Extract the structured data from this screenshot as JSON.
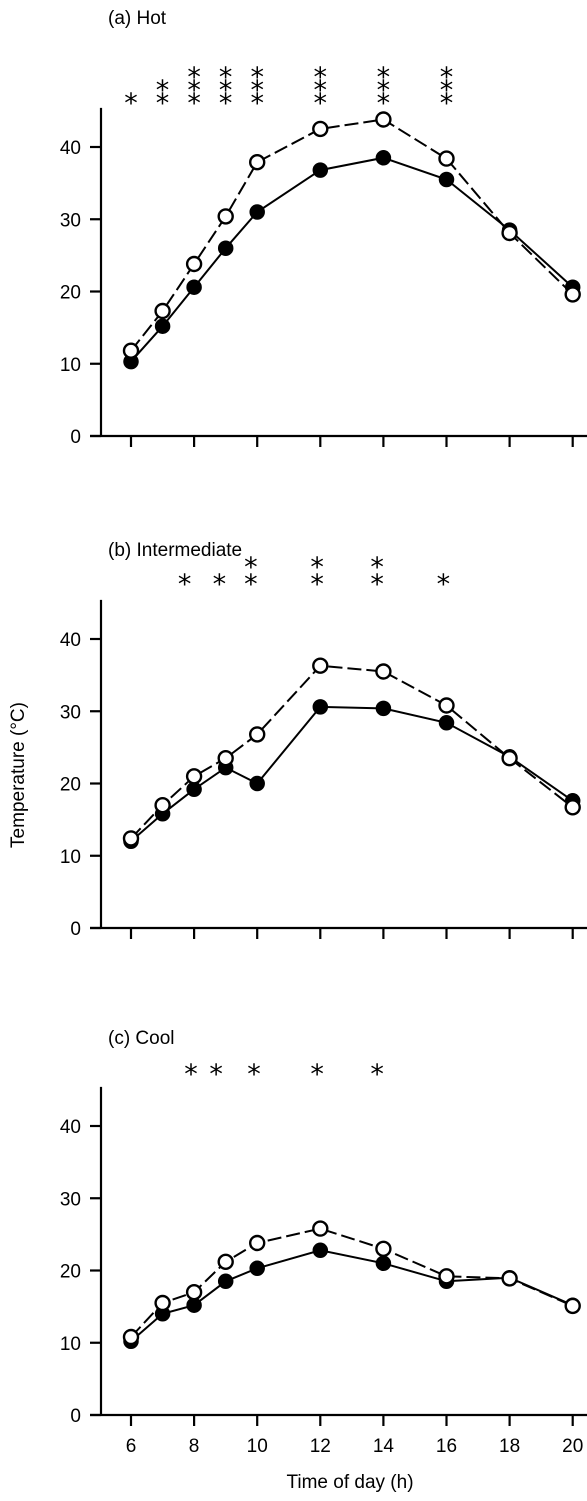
{
  "figure": {
    "y_axis_label": "Temperature (°C)",
    "x_axis_label": "Time of day (h)"
  },
  "chart_data": [
    {
      "type": "line",
      "title": "(a)  Hot",
      "xlabel": "",
      "ylabel": "",
      "ylim": [
        0,
        45
      ],
      "yticks": [
        "0",
        "10",
        "20",
        "30",
        "40"
      ],
      "xticks": [
        6,
        8,
        10,
        12,
        14,
        16,
        18,
        20
      ],
      "xtick_labels": [],
      "series": [
        {
          "style": "open circles, dashed line",
          "x": [
            6,
            7,
            8,
            9,
            10,
            12,
            14,
            16,
            18,
            20
          ],
          "values": [
            11.8,
            17.3,
            23.8,
            30.4,
            37.9,
            42.5,
            43.8,
            38.4,
            28.1,
            19.6
          ]
        },
        {
          "style": "filled circles, solid line",
          "x": [
            6,
            7,
            8,
            9,
            10,
            12,
            14,
            16,
            18,
            20
          ],
          "values": [
            10.3,
            15.2,
            20.6,
            26.0,
            31.0,
            36.8,
            38.5,
            35.5,
            28.5,
            20.6
          ]
        }
      ],
      "significance": [
        {
          "x": 6,
          "marks": [
            "*"
          ]
        },
        {
          "x": 7,
          "marks": [
            "**"
          ]
        },
        {
          "x": 8,
          "marks": [
            "***"
          ]
        },
        {
          "x": 9,
          "marks": [
            "***"
          ]
        },
        {
          "x": 10,
          "marks": [
            "***"
          ]
        },
        {
          "x": 12,
          "marks": [
            "***"
          ]
        },
        {
          "x": 14,
          "marks": [
            "***"
          ]
        },
        {
          "x": 16,
          "marks": [
            "***"
          ]
        }
      ]
    },
    {
      "type": "line",
      "title": "(b)  Intermediate",
      "xlabel": "",
      "ylabel": "Temperature (°C)",
      "ylim": [
        0,
        45
      ],
      "yticks": [
        "0",
        "10",
        "20",
        "30",
        "40"
      ],
      "xticks": [
        6,
        8,
        10,
        12,
        14,
        16,
        18,
        20
      ],
      "xtick_labels": [],
      "series": [
        {
          "style": "open circles, dashed line",
          "x": [
            6,
            7,
            8,
            9,
            10,
            12,
            14,
            16,
            18,
            20
          ],
          "values": [
            12.4,
            17.0,
            21.0,
            23.5,
            26.8,
            36.3,
            35.5,
            30.8,
            23.5,
            16.7
          ]
        },
        {
          "style": "filled circles, solid line",
          "x": [
            6,
            7,
            8,
            9,
            10,
            12,
            14,
            16,
            18,
            20
          ],
          "values": [
            12.0,
            15.8,
            19.2,
            22.2,
            20.0,
            30.6,
            30.4,
            28.4,
            23.7,
            17.6
          ]
        }
      ],
      "significance": [
        {
          "x": 7.7,
          "marks": [
            "*"
          ]
        },
        {
          "x": 8.8,
          "marks": [
            "*"
          ]
        },
        {
          "x": 9.8,
          "marks": [
            "*",
            "*"
          ]
        },
        {
          "x": 11.9,
          "marks": [
            "*",
            "*"
          ]
        },
        {
          "x": 13.8,
          "marks": [
            "*",
            "*"
          ]
        },
        {
          "x": 15.9,
          "marks": [
            "*"
          ]
        }
      ]
    },
    {
      "type": "line",
      "title": "(c)  Cool",
      "xlabel": "Time of day (h)",
      "ylabel": "",
      "ylim": [
        0,
        45
      ],
      "yticks": [
        "0",
        "10",
        "20",
        "30",
        "40"
      ],
      "xticks": [
        6,
        8,
        10,
        12,
        14,
        16,
        18,
        20
      ],
      "xtick_labels": [
        "6",
        "8",
        "10",
        "12",
        "14",
        "16",
        "18",
        "20"
      ],
      "series": [
        {
          "style": "open circles, dashed line",
          "x": [
            6,
            7,
            8,
            9,
            10,
            12,
            14,
            16,
            18,
            20
          ],
          "values": [
            10.8,
            15.5,
            17.0,
            21.2,
            23.8,
            25.8,
            23.0,
            19.2,
            18.9,
            15.1
          ]
        },
        {
          "style": "filled circles, solid line",
          "x": [
            6,
            7,
            8,
            9,
            10,
            12,
            14,
            16,
            18,
            20
          ],
          "values": [
            10.2,
            14.0,
            15.2,
            18.5,
            20.3,
            22.8,
            21.0,
            18.5,
            19.0,
            15.2
          ]
        }
      ],
      "significance": [
        {
          "x": 7.9,
          "marks": [
            "*"
          ]
        },
        {
          "x": 8.7,
          "marks": [
            "*"
          ]
        },
        {
          "x": 9.9,
          "marks": [
            "*"
          ]
        },
        {
          "x": 11.9,
          "marks": [
            "*"
          ]
        },
        {
          "x": 13.8,
          "marks": [
            "*"
          ]
        }
      ]
    }
  ]
}
